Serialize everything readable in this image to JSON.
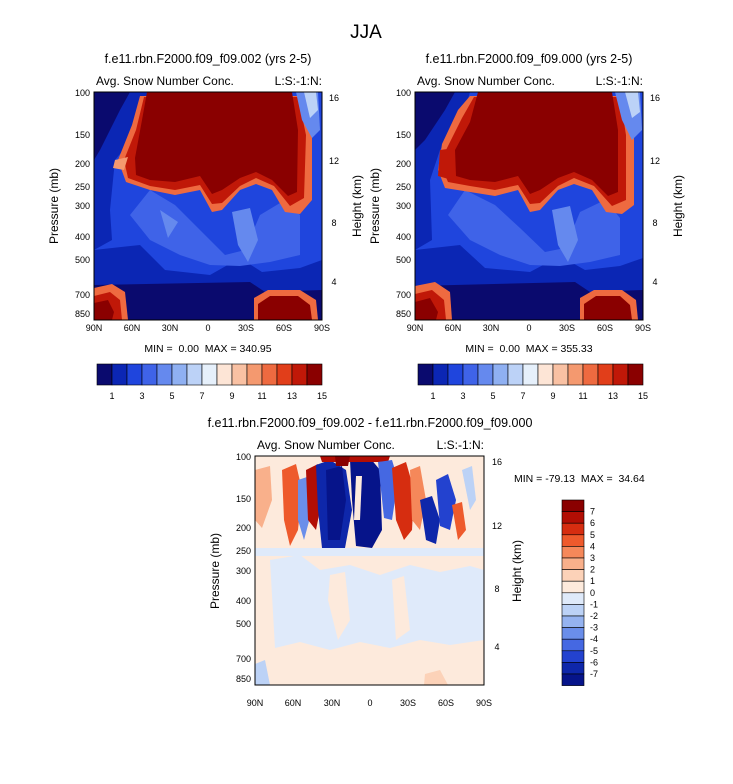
{
  "figure_title": "JJA",
  "chart_data": [
    {
      "type": "heatmap",
      "title": "f.e11.rbn.F2000.f09_f09.002 (yrs 2-5)",
      "left_label": "Avg. Snow Number Conc.",
      "right_label": "L:S:-1:N:",
      "ylabel": "Pressure (mb)",
      "y2label": "Height (km)",
      "xticks": [
        "90N",
        "60N",
        "30N",
        "0",
        "30S",
        "60S",
        "90S"
      ],
      "yticks": [
        "100",
        "150",
        "200",
        "250",
        "300",
        "400",
        "500",
        "700",
        "850"
      ],
      "y2ticks": [
        "16",
        "12",
        "8",
        "4"
      ],
      "stats": "MIN =  0.00  MAX = 340.95",
      "min": 0.0,
      "max": 340.95,
      "colorbar_labels": [
        "1",
        "3",
        "5",
        "7",
        "9",
        "11",
        "13",
        "15"
      ]
    },
    {
      "type": "heatmap",
      "title": "f.e11.rbn.F2000.f09_f09.000 (yrs 2-5)",
      "left_label": "Avg. Snow Number Conc.",
      "right_label": "L:S:-1:N:",
      "ylabel": "Pressure (mb)",
      "y2label": "Height (km)",
      "xticks": [
        "90N",
        "60N",
        "30N",
        "0",
        "30S",
        "60S",
        "90S"
      ],
      "yticks": [
        "100",
        "150",
        "200",
        "250",
        "300",
        "400",
        "500",
        "700",
        "850"
      ],
      "y2ticks": [
        "16",
        "12",
        "8",
        "4"
      ],
      "stats": "MIN =  0.00  MAX = 355.33",
      "min": 0.0,
      "max": 355.33,
      "colorbar_labels": [
        "1",
        "3",
        "5",
        "7",
        "9",
        "11",
        "13",
        "15"
      ]
    },
    {
      "type": "heatmap",
      "title": "f.e11.rbn.F2000.f09_f09.002 - f.e11.rbn.F2000.f09_f09.000",
      "left_label": "Avg. Snow Number Conc.",
      "right_label": "L:S:-1:N:",
      "ylabel": "Pressure (mb)",
      "y2label": "Height (km)",
      "xticks": [
        "90N",
        "60N",
        "30N",
        "0",
        "30S",
        "60S",
        "90S"
      ],
      "yticks": [
        "100",
        "150",
        "200",
        "250",
        "300",
        "400",
        "500",
        "700",
        "850"
      ],
      "y2ticks": [
        "16",
        "12",
        "8",
        "4"
      ],
      "stats": "MIN = -79.13  MAX =  34.64",
      "min": -79.13,
      "max": 34.64,
      "colorbar_labels": [
        "7",
        "6",
        "5",
        "4",
        "3",
        "2",
        "1",
        "0",
        "-1",
        "-2",
        "-3",
        "-4",
        "-5",
        "-6",
        "-7"
      ]
    }
  ],
  "colors": {
    "full_scale": [
      "#0a0a6e",
      "#0b26b4",
      "#1f45dd",
      "#3f63e8",
      "#6589ee",
      "#8fb0f2",
      "#bcd2f7",
      "#e6f0fb",
      "#fde5d6",
      "#f9c1a3",
      "#f4996f",
      "#ee6a40",
      "#e13e1a",
      "#c01808",
      "#8a0000"
    ],
    "diff_scale": [
      "#8a0000",
      "#b20e04",
      "#d62d10",
      "#ee5a2c",
      "#f5885a",
      "#f9b08b",
      "#fcd2b8",
      "#fdeadc",
      "#dfeafa",
      "#bcd2f6",
      "#95b3f0",
      "#6a8eea",
      "#4568e2",
      "#2342cf",
      "#0e27aa",
      "#06148a"
    ]
  }
}
